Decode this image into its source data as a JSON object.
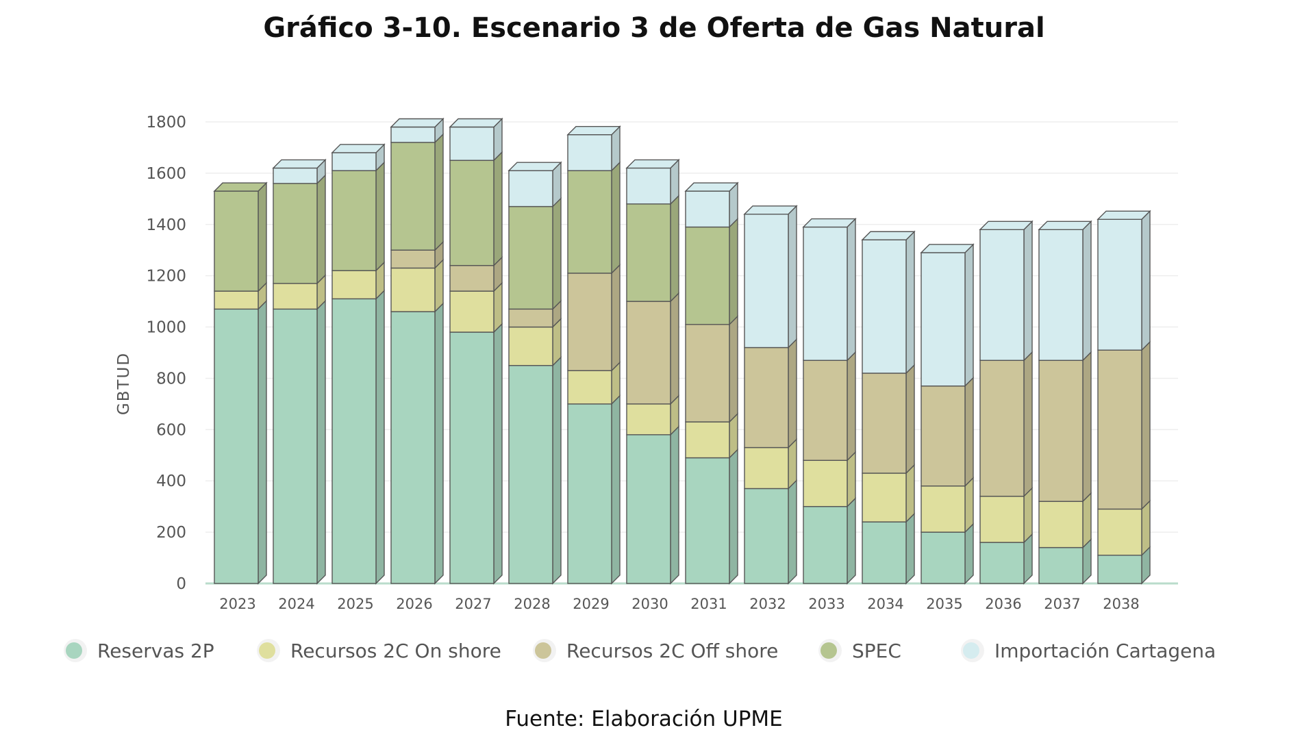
{
  "title": "Gráfico 3-10. Escenario 3 de Oferta de Gas Natural",
  "source": "Fuente: Elaboración UPME",
  "chart_data": {
    "type": "bar",
    "stacked": true,
    "ylabel": "GBTUD",
    "xlabel": "",
    "ylim": [
      0,
      1800
    ],
    "yticks": [
      0,
      200,
      400,
      600,
      800,
      1000,
      1200,
      1400,
      1600,
      1800
    ],
    "grid": true,
    "legend_position": "bottom",
    "categories": [
      "2023",
      "2024",
      "2025",
      "2026",
      "2027",
      "2028",
      "2029",
      "2030",
      "2031",
      "2032",
      "2033",
      "2034",
      "2035",
      "2036",
      "2037",
      "2038"
    ],
    "series": [
      {
        "name": "Reservas 2P",
        "color": "#a8d5bf",
        "values": [
          1070,
          1070,
          1110,
          1060,
          980,
          850,
          700,
          580,
          490,
          370,
          300,
          240,
          200,
          160,
          140,
          110
        ]
      },
      {
        "name": "Recursos 2C On shore",
        "color": "#dfdf9e",
        "values": [
          70,
          100,
          110,
          170,
          160,
          150,
          130,
          120,
          140,
          160,
          180,
          190,
          180,
          180,
          180,
          180
        ]
      },
      {
        "name": "Recursos 2C Off shore",
        "color": "#ccc59a",
        "values": [
          0,
          0,
          0,
          70,
          100,
          70,
          380,
          400,
          380,
          390,
          390,
          390,
          390,
          530,
          550,
          620
        ]
      },
      {
        "name": "SPEC",
        "color": "#b5c590",
        "values": [
          390,
          390,
          390,
          420,
          410,
          400,
          400,
          380,
          380,
          0,
          0,
          0,
          0,
          0,
          0,
          0
        ]
      },
      {
        "name": "Importación Cartagena",
        "color": "#d5ecef",
        "values": [
          0,
          60,
          70,
          60,
          130,
          140,
          140,
          140,
          140,
          520,
          520,
          520,
          520,
          510,
          510,
          510
        ]
      }
    ]
  }
}
